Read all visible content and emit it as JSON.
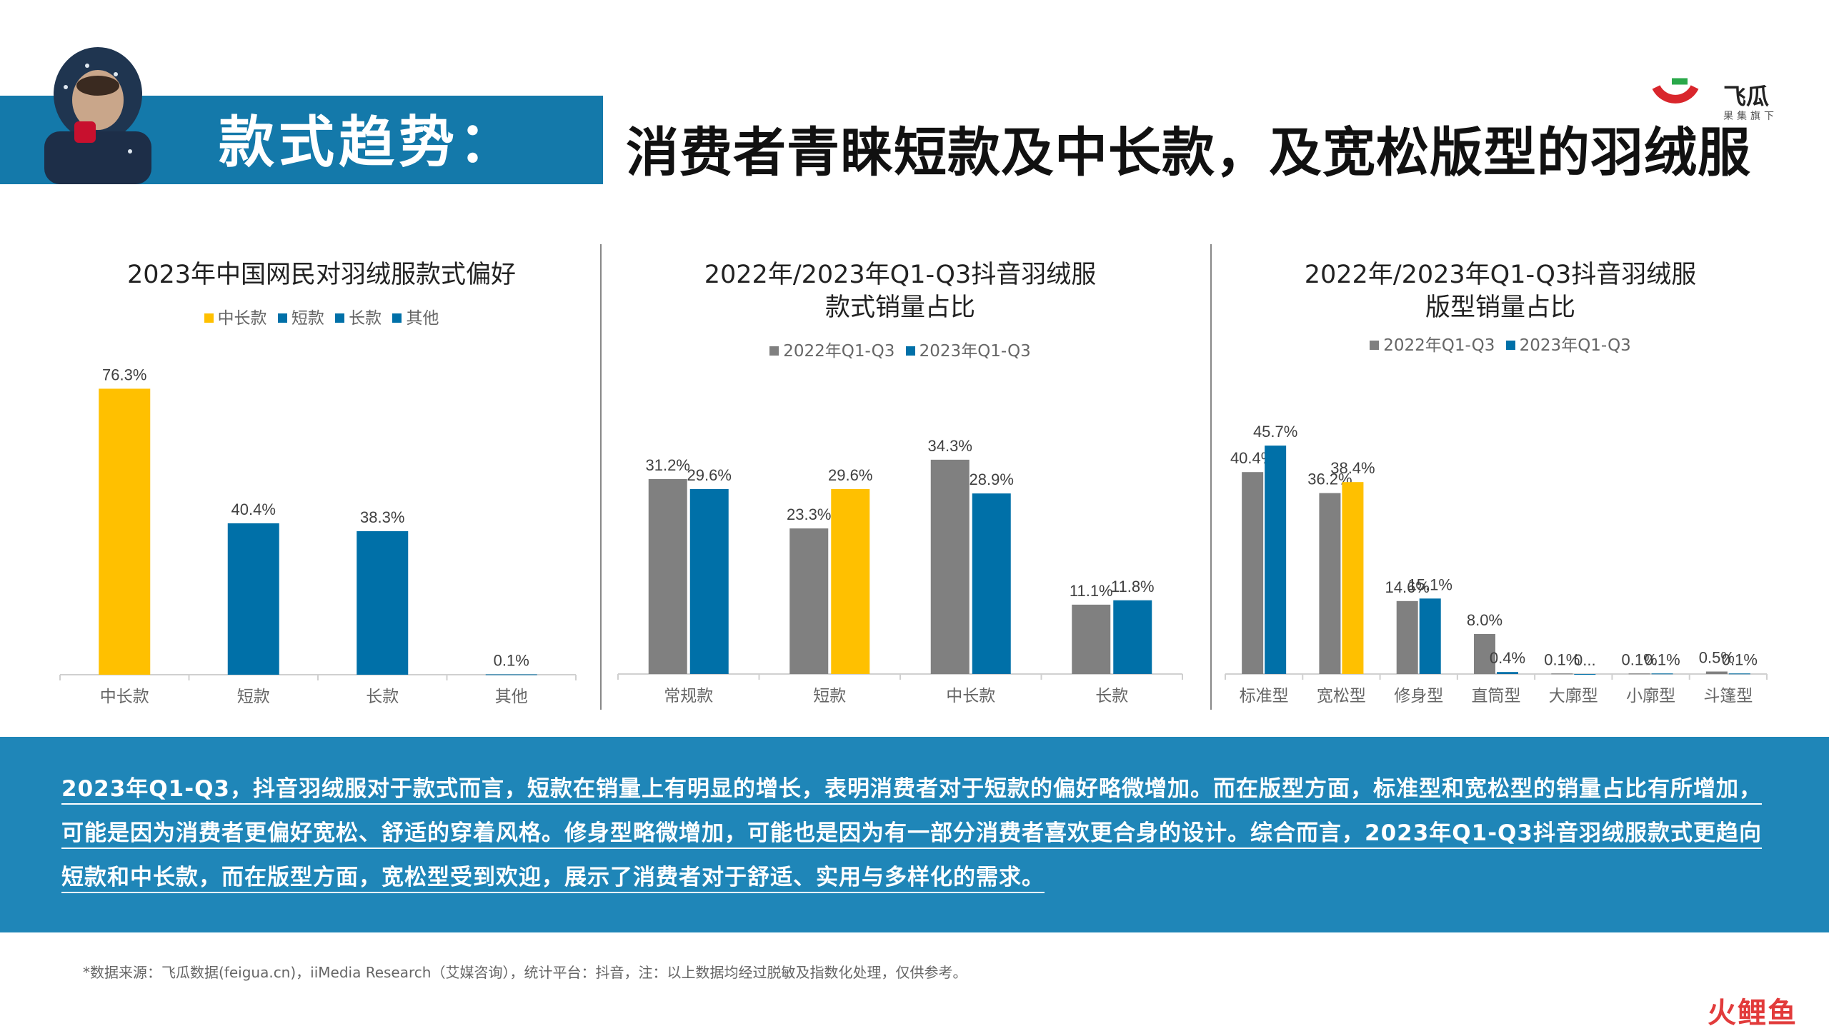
{
  "header": {
    "title": "款式趋势：",
    "headline": "消费者青睐短款及中长款，及宽松版型的羽绒服"
  },
  "logo": {
    "name": "飞瓜",
    "sub": "果集旗下"
  },
  "colors": {
    "accent_blue": "#0070a8",
    "accent_yellow": "#ffc000",
    "grey": "#808080",
    "summary_bg": "#1f86b8",
    "header_bg": "#1479aa"
  },
  "charts": [
    {
      "title_lines": [
        "2023年中国网民对羽绒服款式偏好"
      ],
      "legend": [
        {
          "label": "中长款",
          "color": "#ffc000"
        },
        {
          "label": "短款",
          "color": "#0070a8"
        },
        {
          "label": "长款",
          "color": "#0070a8"
        },
        {
          "label": "其他",
          "color": "#0070a8"
        }
      ]
    },
    {
      "title_lines": [
        "2022年/2023年Q1-Q3抖音羽绒服",
        "款式销量占比"
      ],
      "legend": [
        {
          "label": "2022年Q1-Q3",
          "color": "#808080"
        },
        {
          "label": "2023年Q1-Q3",
          "color": "#0070a8"
        }
      ]
    },
    {
      "title_lines": [
        "2022年/2023年Q1-Q3抖音羽绒服",
        "版型销量占比"
      ],
      "legend": [
        {
          "label": "2022年Q1-Q3",
          "color": "#808080"
        },
        {
          "label": "2023年Q1-Q3",
          "color": "#0070a8"
        }
      ]
    }
  ],
  "chart_data": [
    {
      "type": "bar",
      "title": "2023年中国网民对羽绒服款式偏好",
      "categories": [
        "中长款",
        "短款",
        "长款",
        "其他"
      ],
      "series": [
        {
          "values": [
            76.3,
            40.4,
            38.3,
            0.1
          ],
          "colors": [
            "#ffc000",
            "#0070a8",
            "#0070a8",
            "#0070a8"
          ]
        }
      ],
      "labels": [
        "76.3%",
        "40.4%",
        "38.3%",
        "0.1%"
      ],
      "ylim": [
        0,
        80
      ],
      "grid": false
    },
    {
      "type": "bar",
      "title": "2022年/2023年Q1-Q3抖音羽绒服款式销量占比",
      "categories": [
        "常规款",
        "短款",
        "中长款",
        "长款"
      ],
      "series": [
        {
          "name": "2022年Q1-Q3",
          "values": [
            31.2,
            23.3,
            34.3,
            11.1
          ],
          "colors": [
            "#808080",
            "#808080",
            "#808080",
            "#808080"
          ],
          "labels": [
            "31.2%",
            "23.3%",
            "34.3%",
            "11.1%"
          ]
        },
        {
          "name": "2023年Q1-Q3",
          "values": [
            29.6,
            29.6,
            28.9,
            11.8
          ],
          "colors": [
            "#0070a8",
            "#ffc000",
            "#0070a8",
            "#0070a8"
          ],
          "labels": [
            "29.6%",
            "29.6%",
            "28.9%",
            "11.8%"
          ]
        }
      ],
      "ylim": [
        0,
        40
      ],
      "grid": false
    },
    {
      "type": "bar",
      "title": "2022年/2023年Q1-Q3抖音羽绒服版型销量占比",
      "categories": [
        "标准型",
        "宽松型",
        "修身型",
        "直筒型",
        "大廓型",
        "小廓型",
        "斗篷型"
      ],
      "series": [
        {
          "name": "2022年Q1-Q3",
          "values": [
            40.4,
            36.2,
            14.6,
            8.0,
            0.1,
            0.1,
            0.5
          ],
          "colors": [
            "#808080",
            "#808080",
            "#808080",
            "#808080",
            "#808080",
            "#808080",
            "#808080"
          ],
          "labels": [
            "40.4%",
            "36.2%",
            "14.6%",
            "8.0%",
            "0.1%",
            "0.1%",
            "0.5%"
          ]
        },
        {
          "name": "2023年Q1-Q3",
          "values": [
            45.7,
            38.4,
            15.1,
            0.4,
            0.0,
            0.1,
            0.1
          ],
          "colors": [
            "#0070a8",
            "#ffc000",
            "#0070a8",
            "#0070a8",
            "#0070a8",
            "#0070a8",
            "#0070a8"
          ],
          "labels": [
            "45.7%",
            "38.4%",
            "15.1%",
            "0.4%",
            "0...",
            "0.1%",
            "0.1%"
          ]
        }
      ],
      "ylim": [
        0,
        50
      ],
      "grid": false
    }
  ],
  "summary": {
    "text": "2023年Q1-Q3，抖音羽绒服对于款式而言，短款在销量上有明显的增长，表明消费者对于短款的偏好略微增加。而在版型方面，标准型和宽松型的销量占比有所增加，可能是因为消费者更偏好宽松、舒适的穿着风格。修身型略微增加，可能也是因为有一部分消费者喜欢更合身的设计。综合而言，2023年Q1-Q3抖音羽绒服款式更趋向短款和中长款，而在版型方面，宽松型受到欢迎，展示了消费者对于舒适、实用与多样化的需求。"
  },
  "footnote": "*数据来源：飞瓜数据(feigua.cn)，iiMedia Research（艾媒咨询），统计平台：抖音，注：以上数据均经过脱敏及指数化处理，仅供参考。",
  "watermark": "火鲤鱼"
}
